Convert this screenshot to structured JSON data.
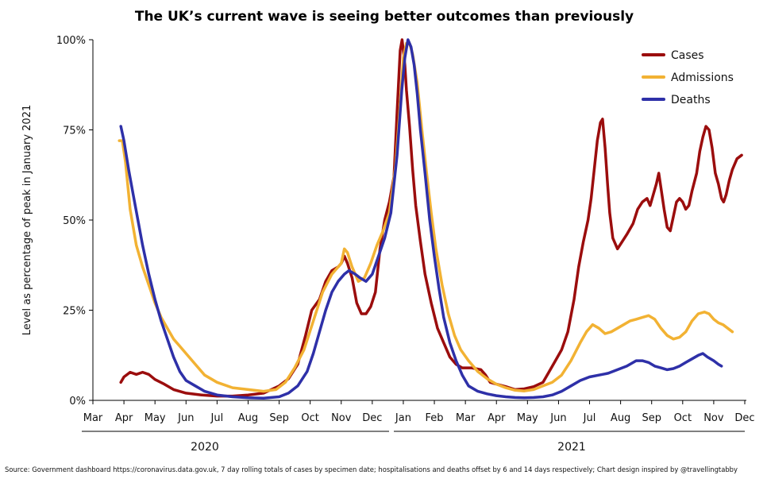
{
  "chart_data": {
    "type": "line",
    "title": "The UK’s current wave is seeing better outcomes than previously",
    "ylabel": "Level as percentage of peak in January 2021",
    "ylim": [
      0,
      100
    ],
    "y_ticks": [
      "0%",
      "25%",
      "50%",
      "75%",
      "100%"
    ],
    "x_ticks": [
      "Mar",
      "Apr",
      "May",
      "Jun",
      "Jul",
      "Aug",
      "Sep",
      "Oct",
      "Nov",
      "Dec",
      "Jan",
      "Feb",
      "Mar",
      "Apr",
      "May",
      "Jun",
      "Jul",
      "Aug",
      "Sep",
      "Oct",
      "Nov",
      "Dec"
    ],
    "year_labels": [
      "2020",
      "2021"
    ],
    "legend_position": "top-right",
    "grid": false,
    "source": "Source: Government dashboard https://coronavirus.data.gov.uk, 7 day rolling totals of cases by specimen date; hospitalisations and deaths offset by 6 and 14 days respectively; Chart design inspired by @travellingtabby",
    "x_unit": "months since 1 March 2020",
    "series": [
      {
        "name": "Cases",
        "color": "#9b0d0d",
        "points": [
          [
            0.9,
            5
          ],
          [
            1.0,
            6.5
          ],
          [
            1.2,
            7.8
          ],
          [
            1.4,
            7.2
          ],
          [
            1.6,
            7.8
          ],
          [
            1.8,
            7.2
          ],
          [
            2.0,
            5.8
          ],
          [
            2.3,
            4.5
          ],
          [
            2.6,
            3
          ],
          [
            3.0,
            2
          ],
          [
            3.5,
            1.5
          ],
          [
            4.0,
            1.2
          ],
          [
            4.5,
            1.2
          ],
          [
            5.0,
            1.5
          ],
          [
            5.5,
            2
          ],
          [
            6.0,
            4
          ],
          [
            6.3,
            6
          ],
          [
            6.6,
            10
          ],
          [
            6.85,
            18
          ],
          [
            7.05,
            25
          ],
          [
            7.3,
            28
          ],
          [
            7.5,
            33
          ],
          [
            7.7,
            36
          ],
          [
            7.9,
            37
          ],
          [
            8.0,
            38
          ],
          [
            8.1,
            40
          ],
          [
            8.2,
            38
          ],
          [
            8.35,
            34
          ],
          [
            8.5,
            27
          ],
          [
            8.65,
            24
          ],
          [
            8.8,
            24
          ],
          [
            8.95,
            26
          ],
          [
            9.1,
            30
          ],
          [
            9.25,
            42
          ],
          [
            9.4,
            50
          ],
          [
            9.55,
            55
          ],
          [
            9.7,
            62
          ],
          [
            9.8,
            80
          ],
          [
            9.9,
            97
          ],
          [
            9.96,
            100
          ],
          [
            10.0,
            97
          ],
          [
            10.05,
            93
          ],
          [
            10.1,
            86
          ],
          [
            10.2,
            76
          ],
          [
            10.3,
            64
          ],
          [
            10.4,
            54
          ],
          [
            10.55,
            44
          ],
          [
            10.7,
            35
          ],
          [
            10.9,
            27
          ],
          [
            11.1,
            20
          ],
          [
            11.3,
            16
          ],
          [
            11.5,
            12
          ],
          [
            11.7,
            10
          ],
          [
            11.9,
            9
          ],
          [
            12.2,
            9
          ],
          [
            12.5,
            8.5
          ],
          [
            12.65,
            7
          ],
          [
            12.8,
            5
          ],
          [
            13.0,
            4.5
          ],
          [
            13.3,
            3.8
          ],
          [
            13.6,
            3
          ],
          [
            13.9,
            3.2
          ],
          [
            14.2,
            3.8
          ],
          [
            14.5,
            5
          ],
          [
            14.7,
            8
          ],
          [
            14.9,
            11
          ],
          [
            15.1,
            14
          ],
          [
            15.3,
            19
          ],
          [
            15.5,
            28
          ],
          [
            15.65,
            37
          ],
          [
            15.8,
            44
          ],
          [
            15.95,
            50
          ],
          [
            16.05,
            56
          ],
          [
            16.15,
            64
          ],
          [
            16.25,
            72
          ],
          [
            16.35,
            77
          ],
          [
            16.42,
            78
          ],
          [
            16.5,
            70
          ],
          [
            16.58,
            60
          ],
          [
            16.65,
            52
          ],
          [
            16.75,
            45
          ],
          [
            16.9,
            42
          ],
          [
            17.05,
            44
          ],
          [
            17.2,
            46
          ],
          [
            17.4,
            49
          ],
          [
            17.55,
            53
          ],
          [
            17.7,
            55
          ],
          [
            17.85,
            56
          ],
          [
            17.95,
            54
          ],
          [
            18.05,
            57
          ],
          [
            18.15,
            60
          ],
          [
            18.23,
            63
          ],
          [
            18.3,
            59
          ],
          [
            18.4,
            53
          ],
          [
            18.5,
            48
          ],
          [
            18.6,
            47
          ],
          [
            18.7,
            51
          ],
          [
            18.8,
            55
          ],
          [
            18.9,
            56
          ],
          [
            19.0,
            55
          ],
          [
            19.1,
            53
          ],
          [
            19.2,
            54
          ],
          [
            19.3,
            58
          ],
          [
            19.45,
            63
          ],
          [
            19.55,
            69
          ],
          [
            19.65,
            73
          ],
          [
            19.75,
            76
          ],
          [
            19.85,
            75
          ],
          [
            19.95,
            70
          ],
          [
            20.05,
            63
          ],
          [
            20.15,
            60
          ],
          [
            20.25,
            56
          ],
          [
            20.32,
            55
          ],
          [
            20.4,
            57
          ],
          [
            20.5,
            61
          ],
          [
            20.6,
            64
          ],
          [
            20.75,
            67
          ],
          [
            20.9,
            68
          ]
        ]
      },
      {
        "name": "Admissions",
        "color": "#f2b233",
        "points": [
          [
            0.85,
            72
          ],
          [
            0.95,
            72
          ],
          [
            1.05,
            66
          ],
          [
            1.2,
            53
          ],
          [
            1.4,
            43
          ],
          [
            1.6,
            37
          ],
          [
            1.8,
            32
          ],
          [
            2.0,
            27
          ],
          [
            2.2,
            23
          ],
          [
            2.4,
            20
          ],
          [
            2.6,
            17
          ],
          [
            2.8,
            15
          ],
          [
            3.0,
            13
          ],
          [
            3.3,
            10
          ],
          [
            3.6,
            7
          ],
          [
            4.0,
            5
          ],
          [
            4.5,
            3.5
          ],
          [
            5.0,
            3
          ],
          [
            5.5,
            2.5
          ],
          [
            5.9,
            3
          ],
          [
            6.2,
            5
          ],
          [
            6.5,
            9
          ],
          [
            6.8,
            14
          ],
          [
            7.1,
            22
          ],
          [
            7.4,
            30
          ],
          [
            7.7,
            35
          ],
          [
            7.9,
            37
          ],
          [
            8.0,
            38
          ],
          [
            8.1,
            42
          ],
          [
            8.2,
            41
          ],
          [
            8.35,
            37
          ],
          [
            8.55,
            33
          ],
          [
            8.75,
            34
          ],
          [
            8.95,
            38
          ],
          [
            9.15,
            43
          ],
          [
            9.35,
            47
          ],
          [
            9.55,
            52
          ],
          [
            9.75,
            65
          ],
          [
            9.9,
            82
          ],
          [
            10.0,
            95
          ],
          [
            10.1,
            99
          ],
          [
            10.2,
            99
          ],
          [
            10.3,
            96
          ],
          [
            10.45,
            88
          ],
          [
            10.6,
            75
          ],
          [
            10.75,
            63
          ],
          [
            10.9,
            52
          ],
          [
            11.05,
            42
          ],
          [
            11.25,
            32
          ],
          [
            11.45,
            24
          ],
          [
            11.65,
            18
          ],
          [
            11.85,
            14
          ],
          [
            12.1,
            11
          ],
          [
            12.4,
            8
          ],
          [
            12.7,
            6
          ],
          [
            13.0,
            4.5
          ],
          [
            13.3,
            3.5
          ],
          [
            13.6,
            2.8
          ],
          [
            13.9,
            2.6
          ],
          [
            14.2,
            3
          ],
          [
            14.5,
            4
          ],
          [
            14.8,
            5
          ],
          [
            15.1,
            7
          ],
          [
            15.4,
            11
          ],
          [
            15.7,
            16
          ],
          [
            15.9,
            19
          ],
          [
            16.1,
            21
          ],
          [
            16.3,
            20
          ],
          [
            16.5,
            18.5
          ],
          [
            16.7,
            19
          ],
          [
            16.9,
            20
          ],
          [
            17.1,
            21
          ],
          [
            17.3,
            22
          ],
          [
            17.5,
            22.5
          ],
          [
            17.7,
            23
          ],
          [
            17.9,
            23.5
          ],
          [
            18.1,
            22.5
          ],
          [
            18.3,
            20
          ],
          [
            18.5,
            18
          ],
          [
            18.7,
            17
          ],
          [
            18.9,
            17.5
          ],
          [
            19.1,
            19
          ],
          [
            19.3,
            22
          ],
          [
            19.5,
            24
          ],
          [
            19.7,
            24.5
          ],
          [
            19.85,
            24
          ],
          [
            20.0,
            22.5
          ],
          [
            20.15,
            21.5
          ],
          [
            20.3,
            21
          ],
          [
            20.45,
            20
          ],
          [
            20.6,
            19
          ]
        ]
      },
      {
        "name": "Deaths",
        "color": "#2e30a8",
        "points": [
          [
            0.9,
            76
          ],
          [
            1.0,
            72
          ],
          [
            1.15,
            64
          ],
          [
            1.3,
            57
          ],
          [
            1.45,
            50
          ],
          [
            1.6,
            43
          ],
          [
            1.8,
            35
          ],
          [
            2.0,
            28
          ],
          [
            2.2,
            22
          ],
          [
            2.4,
            17
          ],
          [
            2.6,
            12
          ],
          [
            2.8,
            8
          ],
          [
            3.0,
            5.5
          ],
          [
            3.3,
            4
          ],
          [
            3.6,
            2.5
          ],
          [
            4.0,
            1.5
          ],
          [
            4.5,
            1
          ],
          [
            5.0,
            0.7
          ],
          [
            5.5,
            0.6
          ],
          [
            6.0,
            1
          ],
          [
            6.3,
            2
          ],
          [
            6.6,
            4
          ],
          [
            6.9,
            8
          ],
          [
            7.1,
            13
          ],
          [
            7.3,
            19
          ],
          [
            7.5,
            25
          ],
          [
            7.7,
            30
          ],
          [
            7.9,
            33
          ],
          [
            8.1,
            35
          ],
          [
            8.25,
            36
          ],
          [
            8.45,
            35
          ],
          [
            8.6,
            34
          ],
          [
            8.8,
            33
          ],
          [
            9.0,
            35
          ],
          [
            9.2,
            40
          ],
          [
            9.4,
            45
          ],
          [
            9.6,
            52
          ],
          [
            9.8,
            68
          ],
          [
            9.95,
            86
          ],
          [
            10.05,
            95
          ],
          [
            10.15,
            100
          ],
          [
            10.25,
            98
          ],
          [
            10.35,
            93
          ],
          [
            10.45,
            85
          ],
          [
            10.55,
            75
          ],
          [
            10.7,
            63
          ],
          [
            10.85,
            50
          ],
          [
            11.0,
            40
          ],
          [
            11.15,
            31
          ],
          [
            11.3,
            23
          ],
          [
            11.5,
            16
          ],
          [
            11.7,
            11
          ],
          [
            11.9,
            7
          ],
          [
            12.1,
            4
          ],
          [
            12.4,
            2.5
          ],
          [
            12.7,
            1.8
          ],
          [
            13.0,
            1.3
          ],
          [
            13.3,
            1
          ],
          [
            13.6,
            0.8
          ],
          [
            13.9,
            0.7
          ],
          [
            14.2,
            0.8
          ],
          [
            14.5,
            1
          ],
          [
            14.8,
            1.5
          ],
          [
            15.1,
            2.5
          ],
          [
            15.4,
            4
          ],
          [
            15.7,
            5.5
          ],
          [
            16.0,
            6.5
          ],
          [
            16.3,
            7
          ],
          [
            16.6,
            7.5
          ],
          [
            16.9,
            8.5
          ],
          [
            17.2,
            9.5
          ],
          [
            17.5,
            11
          ],
          [
            17.7,
            11
          ],
          [
            17.9,
            10.5
          ],
          [
            18.1,
            9.5
          ],
          [
            18.3,
            9
          ],
          [
            18.5,
            8.5
          ],
          [
            18.7,
            8.8
          ],
          [
            18.9,
            9.5
          ],
          [
            19.1,
            10.5
          ],
          [
            19.3,
            11.5
          ],
          [
            19.5,
            12.5
          ],
          [
            19.65,
            13
          ],
          [
            19.8,
            12
          ],
          [
            20.0,
            11
          ],
          [
            20.15,
            10
          ],
          [
            20.25,
            9.5
          ]
        ]
      }
    ]
  }
}
